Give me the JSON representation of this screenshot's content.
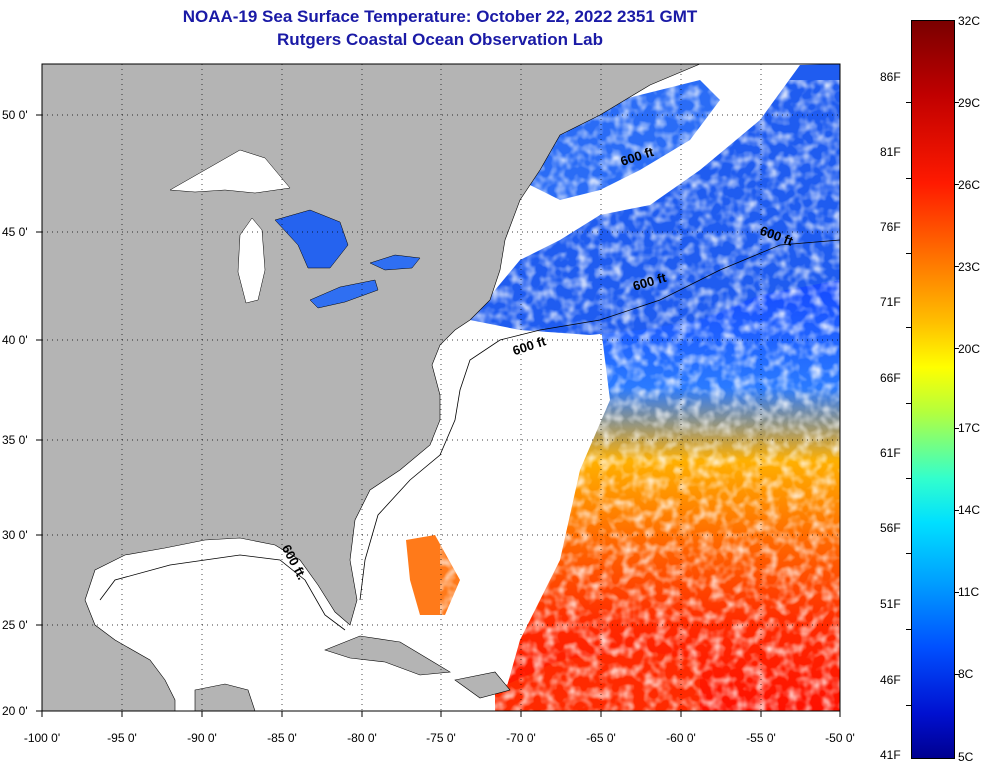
{
  "title": {
    "line1": "NOAA-19 Sea Surface Temperature:  October 22, 2022 2351 GMT",
    "line2": "Rutgers Coastal Ocean Observation Lab"
  },
  "axes": {
    "lat_labels": [
      "50 0'",
      "45 0'",
      "40 0'",
      "35 0'",
      "30 0'",
      "25 0'",
      "20 0'"
    ],
    "lon_labels": [
      "-100 0'",
      "-95 0'",
      "-90 0'",
      "-85 0'",
      "-80 0'",
      "-75 0'",
      "-70 0'",
      "-65 0'",
      "-60 0'",
      "-55 0'",
      "-50 0'"
    ]
  },
  "map": {
    "depth_labels": [
      "600 ft",
      "600 ft",
      "600 ft",
      "600 ft",
      "600 ft."
    ],
    "land_color": "#b4b4b4",
    "cloud_color": "#ffffff",
    "grid": "dotted"
  },
  "colorbar": {
    "fahrenheit": [
      "86F",
      "81F",
      "76F",
      "71F",
      "66F",
      "61F",
      "56F",
      "51F",
      "46F",
      "41F"
    ],
    "celsius": [
      "32C",
      "29C",
      "26C",
      "23C",
      "20C",
      "17C",
      "14C",
      "11C",
      "8C",
      "5C"
    ]
  }
}
